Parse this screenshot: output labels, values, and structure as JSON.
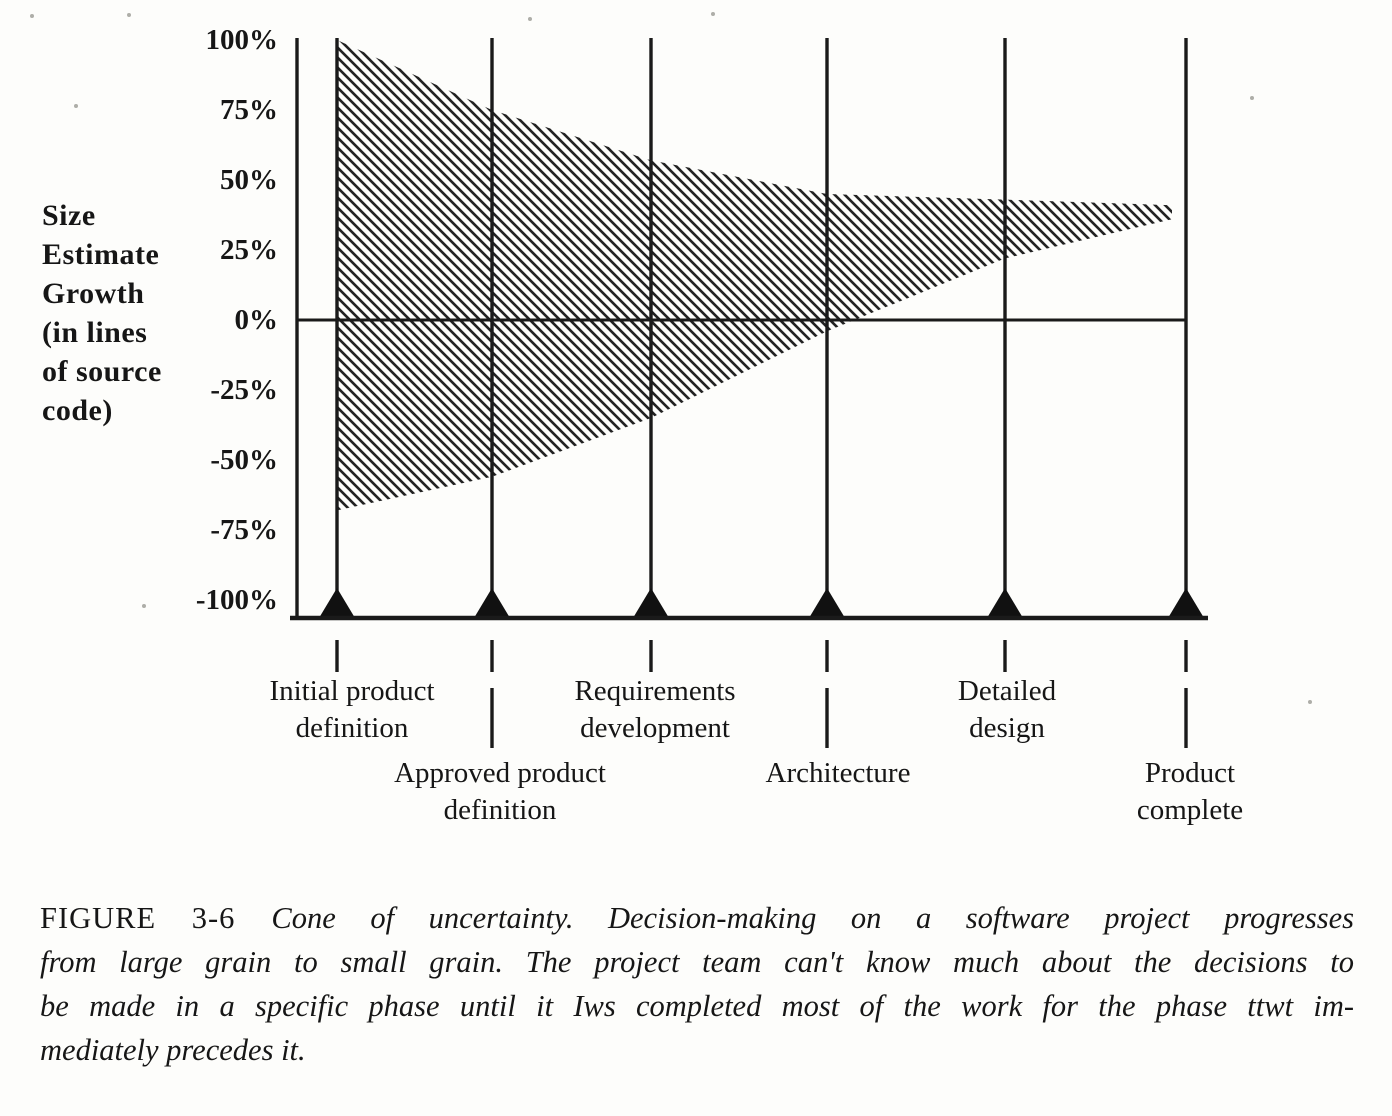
{
  "figure": {
    "caption_label": "FIGURE 3-6",
    "caption_lines": [
      "Cone of uncertainty. Decision-making on a software project progresses",
      "from large grain to small grain. The project team can't know much about the decisions to",
      "be made in a specific phase until it Iws completed most of the work for the phase ttwt im-",
      "mediately precedes it."
    ]
  },
  "y_axis": {
    "label_lines": [
      "Size",
      "Estimate",
      "Growth",
      "(in lines",
      "of source",
      "code)"
    ],
    "ticks": [
      "100%",
      "75%",
      "50%",
      "25%",
      "0%",
      "-25%",
      "-50%",
      "-75%",
      "-100%"
    ]
  },
  "milestone_labels": {
    "initial": [
      "Initial product",
      "definition"
    ],
    "approved": [
      "Approved product",
      "definition"
    ],
    "requirements": [
      "Requirements",
      "development"
    ],
    "architecture": [
      "Architecture"
    ],
    "detailed": [
      "Detailed",
      "design"
    ],
    "complete": [
      "Product",
      "complete"
    ]
  },
  "chart_data": {
    "type": "area",
    "title": "Cone of uncertainty",
    "ylabel": "Size Estimate Growth (in lines of source code)",
    "xlabel": "",
    "categories": [
      "Initial product definition",
      "Approved product definition",
      "Requirements development",
      "Architecture",
      "Detailed design",
      "Product complete"
    ],
    "series": [
      {
        "name": "upper uncertainty bound (size estimate growth %)",
        "values": [
          100,
          75,
          57,
          45,
          43,
          41
        ]
      },
      {
        "name": "lower uncertainty bound (size estimate growth %)",
        "values": [
          -68,
          -56,
          -35,
          -4,
          22,
          36
        ]
      }
    ],
    "y_tick_values": [
      100,
      75,
      50,
      25,
      0,
      -25,
      -50,
      -75,
      -100
    ],
    "ylim": [
      -100,
      100
    ],
    "grid": false,
    "legend": "none",
    "fill_style": "diagonal-hatch",
    "ink_color": "#1a1a1a"
  }
}
